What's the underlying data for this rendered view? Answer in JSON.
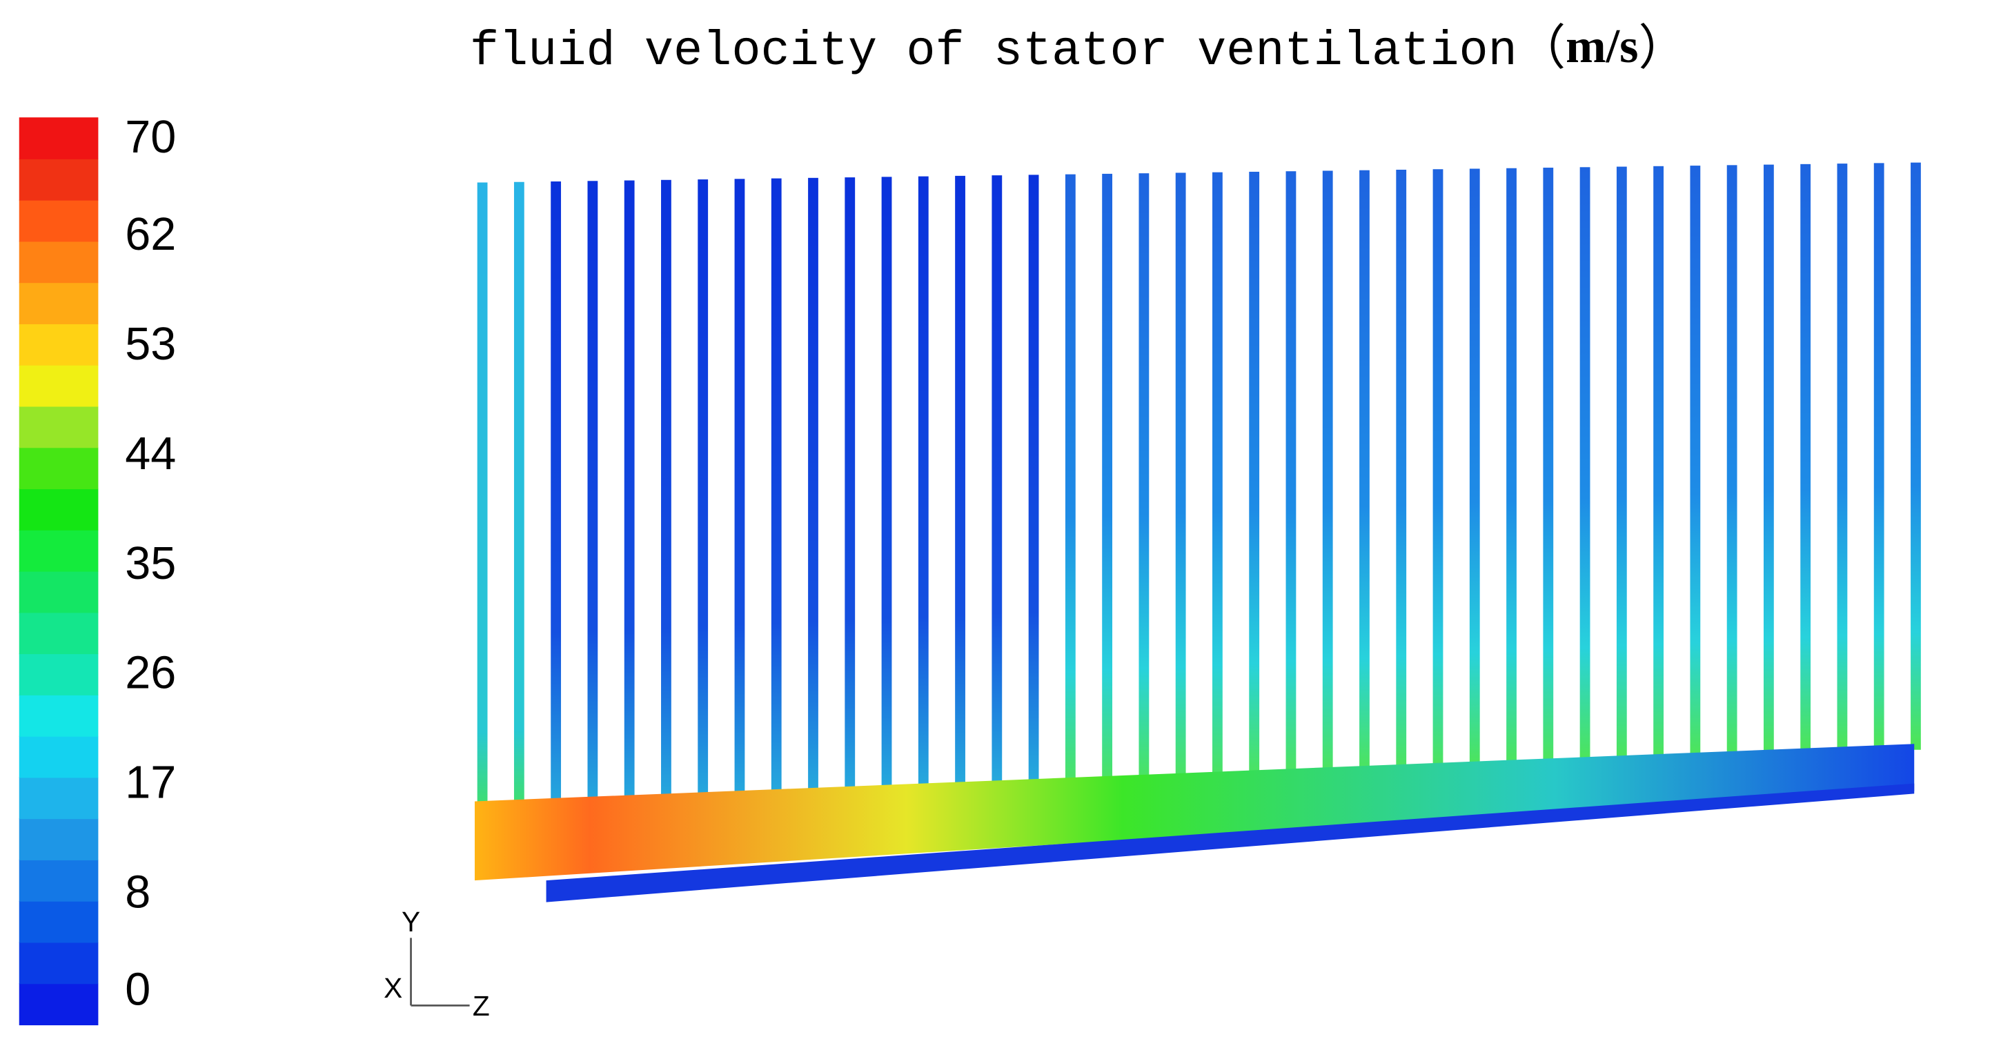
{
  "title": {
    "text": "fluid velocity of stator ventilation（",
    "unit": "m/s",
    "close": "）"
  },
  "colorbar": {
    "ticks": [
      0,
      8,
      17,
      26,
      35,
      44,
      53,
      62,
      70
    ],
    "range": [
      0,
      70
    ],
    "colors": [
      "#0a1ee6",
      "#0a3ce6",
      "#0a5ae6",
      "#1478e6",
      "#1e96e6",
      "#1eb4eb",
      "#14d2f0",
      "#14e6e6",
      "#14e6b4",
      "#14e68c",
      "#14e664",
      "#14eb3c",
      "#14e614",
      "#46e614",
      "#96e628",
      "#f0f014",
      "#ffd214",
      "#ffaa14",
      "#ff8214",
      "#ff5a14",
      "#f03214",
      "#f01414"
    ]
  },
  "axes": {
    "y": "Y",
    "x": "X",
    "z": "Z"
  }
}
